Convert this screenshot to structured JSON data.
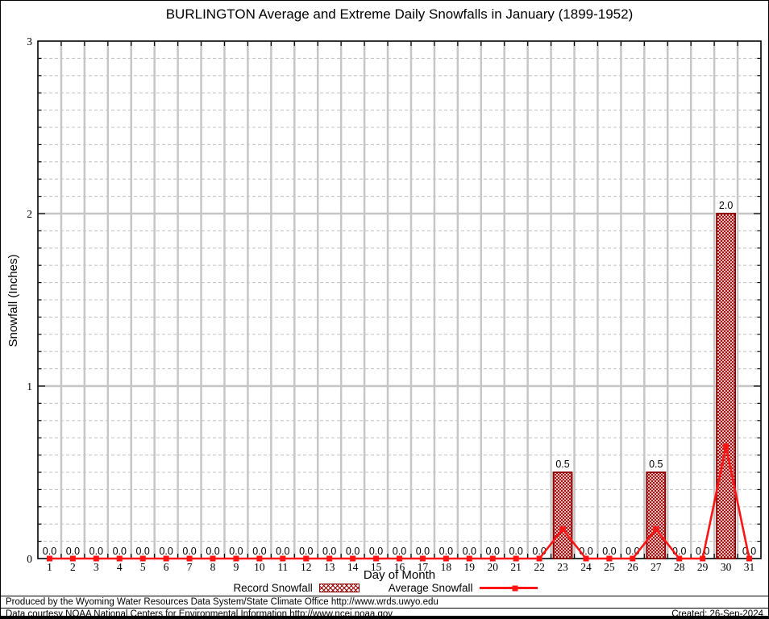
{
  "title": "BURLINGTON Average and Extreme Daily Snowfalls in January (1899-1952)",
  "y_axis": {
    "label": "Snowfall (Inches)"
  },
  "x_axis": {
    "label": "Day of Month"
  },
  "legend": [
    {
      "label": "Record Snowfall",
      "swatch": "hatched-bar"
    },
    {
      "label": "Average Snowfall",
      "swatch": "line-marker"
    }
  ],
  "footer": {
    "line1": "Produced by the Wyoming Water Resources Data System/State Climate Office http://www.wrds.uwyo.edu",
    "line2": "Data courtesy NOAA National Centers for Environmental Information http://www.ncei.noaa.gov",
    "created": "Created: 26-Sep-2024"
  },
  "colors": {
    "bar_hatch": "#990000",
    "bar_border": "#8b0000",
    "line": "#ff1414",
    "grid": "#c6c6c6",
    "frame": "#000000",
    "background": "#ffffff"
  },
  "chart_data": {
    "type": "bar",
    "title": "BURLINGTON Average and Extreme Daily Snowfalls in January (1899-1952)",
    "xlabel": "Day of Month",
    "ylabel": "Snowfall (Inches)",
    "ylim": [
      0,
      3
    ],
    "yticks_major": [
      0,
      1,
      2,
      3
    ],
    "ytick_minor_step": 0.1,
    "grid": "on",
    "legend_position": "bottom",
    "categories": [
      1,
      2,
      3,
      4,
      5,
      6,
      7,
      8,
      9,
      10,
      11,
      12,
      13,
      14,
      15,
      16,
      17,
      18,
      19,
      20,
      21,
      22,
      23,
      24,
      25,
      26,
      27,
      28,
      29,
      30,
      31
    ],
    "series": [
      {
        "name": "Record Snowfall",
        "type": "bar",
        "values": [
          0,
          0,
          0,
          0,
          0,
          0,
          0,
          0,
          0,
          0,
          0,
          0,
          0,
          0,
          0,
          0,
          0,
          0,
          0,
          0,
          0,
          0,
          0.5,
          0,
          0,
          0,
          0.5,
          0,
          0,
          2.0,
          0
        ],
        "value_labels": [
          "0.0",
          "0.0",
          "0.0",
          "0.0",
          "0.0",
          "0.0",
          "0.0",
          "0.0",
          "0.0",
          "0.0",
          "0.0",
          "0.0",
          "0.0",
          "0.0",
          "0.0",
          "0.0",
          "0.0",
          "0.0",
          "0.0",
          "0.0",
          "0.0",
          "0.0",
          "0.5",
          "0.0",
          "0.0",
          "0.0",
          "0.5",
          "0.0",
          "0.0",
          "2.0",
          "0.0"
        ]
      },
      {
        "name": "Average Snowfall",
        "type": "line",
        "values": [
          0,
          0,
          0,
          0,
          0,
          0,
          0,
          0,
          0,
          0,
          0,
          0,
          0,
          0,
          0,
          0,
          0,
          0,
          0,
          0,
          0,
          0,
          0.17,
          0,
          0,
          0,
          0.17,
          0,
          0,
          0.65,
          0
        ]
      }
    ]
  }
}
